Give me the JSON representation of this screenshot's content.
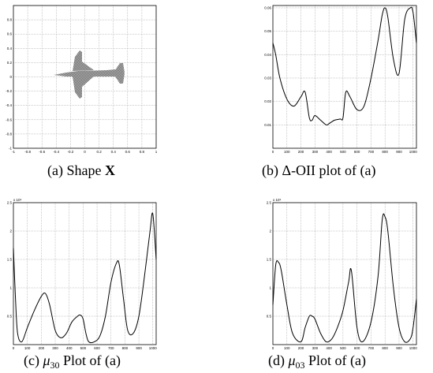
{
  "figures": [
    {
      "id": "a",
      "caption": {
        "prefix": "(a) Shape",
        "bold": "X",
        "mu": "",
        "sub": "",
        "suffix": ""
      },
      "xticks": [
        "-1",
        "-0.8",
        "-0.6",
        "-0.4",
        "-0.2",
        "0",
        "0.2",
        "0.4",
        "0.6",
        "0.8",
        "1"
      ],
      "yticks": [
        "0.8",
        "0.6",
        "0.4",
        "0.2",
        "0",
        "-0.2",
        "-0.4",
        "-0.6",
        "-0.8",
        "-1"
      ]
    },
    {
      "id": "b",
      "caption": {
        "prefix": "(b) Δ-OII plot of (a)",
        "bold": "",
        "mu": "",
        "sub": "",
        "suffix": ""
      },
      "xticks": [
        "0",
        "100",
        "200",
        "300",
        "400",
        "500",
        "600",
        "700",
        "800",
        "900",
        "1000"
      ],
      "yticks": [
        "0.06",
        "0.05",
        "0.04",
        "0.03",
        "0.02",
        "0.01"
      ]
    },
    {
      "id": "c",
      "caption": {
        "prefix": "(c)",
        "bold": "",
        "mu": "μ",
        "sub": "30",
        "suffix": "Plot of (a)"
      },
      "exponent": "x 10⁹",
      "xticks": [
        "0",
        "100",
        "200",
        "300",
        "400",
        "500",
        "600",
        "700",
        "800",
        "900",
        "1000"
      ],
      "yticks": [
        "2.5",
        "2",
        "1.5",
        "1",
        "0.5"
      ]
    },
    {
      "id": "d",
      "caption": {
        "prefix": "(d)",
        "bold": "",
        "mu": "μ",
        "sub": "03",
        "suffix": "Plot of (a)"
      },
      "exponent": "x 10⁹",
      "xticks": [
        "0",
        "100",
        "200",
        "300",
        "400",
        "500",
        "600",
        "700",
        "800",
        "900",
        "1000"
      ],
      "yticks": [
        "2.5",
        "2",
        "1.5",
        "1",
        "0.5"
      ]
    }
  ],
  "chart_data": [
    {
      "type": "line",
      "figure": "b",
      "xlim": [
        0,
        1024
      ],
      "ylim": [
        0,
        0.061
      ],
      "grid": true,
      "x": [
        0,
        20,
        50,
        100,
        150,
        200,
        230,
        260,
        280,
        300,
        340,
        380,
        400,
        440,
        480,
        500,
        520,
        550,
        600,
        650,
        700,
        750,
        780,
        800,
        820,
        860,
        900,
        940,
        980,
        1000,
        1024
      ],
      "y": [
        0.045,
        0.04,
        0.03,
        0.021,
        0.018,
        0.022,
        0.024,
        0.013,
        0.012,
        0.014,
        0.012,
        0.01,
        0.0105,
        0.012,
        0.0125,
        0.013,
        0.024,
        0.022,
        0.0165,
        0.018,
        0.03,
        0.046,
        0.057,
        0.06,
        0.056,
        0.038,
        0.032,
        0.055,
        0.06,
        0.058,
        0.045
      ]
    },
    {
      "type": "line",
      "figure": "c",
      "xlim": [
        0,
        1024
      ],
      "ylim": [
        0,
        2.5
      ],
      "grid": true,
      "x": [
        0,
        15,
        30,
        60,
        100,
        150,
        200,
        230,
        260,
        300,
        340,
        380,
        420,
        460,
        480,
        500,
        520,
        540,
        580,
        620,
        660,
        700,
        740,
        760,
        790,
        820,
        860,
        900,
        940,
        980,
        1000,
        1024
      ],
      "y": [
        1.7,
        0.8,
        0.2,
        0.05,
        0.3,
        0.6,
        0.85,
        0.9,
        0.7,
        0.25,
        0.12,
        0.2,
        0.4,
        0.5,
        0.52,
        0.45,
        0.2,
        0.05,
        0.05,
        0.15,
        0.5,
        1.1,
        1.44,
        1.4,
        0.8,
        0.25,
        0.2,
        0.5,
        1.2,
        2.0,
        2.3,
        1.5
      ]
    },
    {
      "type": "line",
      "figure": "d",
      "xlim": [
        0,
        1024
      ],
      "ylim": [
        0,
        2.5
      ],
      "grid": true,
      "x": [
        0,
        20,
        40,
        60,
        100,
        140,
        200,
        230,
        260,
        280,
        300,
        340,
        380,
        420,
        460,
        500,
        540,
        560,
        600,
        640,
        700,
        750,
        780,
        800,
        820,
        860,
        900,
        940,
        980,
        1000,
        1024
      ],
      "y": [
        0.7,
        1.4,
        1.45,
        1.3,
        0.7,
        0.2,
        0.05,
        0.3,
        0.5,
        0.5,
        0.45,
        0.2,
        0.05,
        0.1,
        0.3,
        0.6,
        1.1,
        1.3,
        0.3,
        0.05,
        0.4,
        1.2,
        2.2,
        2.25,
        2.0,
        1.0,
        0.3,
        0.05,
        0.1,
        0.3,
        0.8
      ]
    }
  ]
}
